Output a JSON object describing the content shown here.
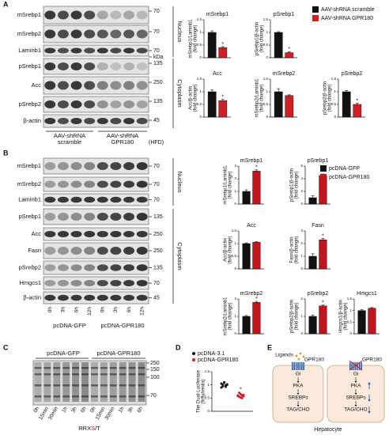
{
  "panel_labels": [
    "A",
    "B",
    "C",
    "D",
    "E"
  ],
  "legends": [
    [
      {
        "name": "AAV-shRNA scramble",
        "color": "#111111"
      },
      {
        "name": "AAV-shRNA GPR180",
        "color": "#d11f26"
      }
    ],
    [
      {
        "name": "pcDNA-GFP",
        "color": "#111111"
      },
      {
        "name": "pcDNA-GPR180",
        "color": "#c3151c"
      }
    ]
  ],
  "chart_data": [
    {
      "type": "bar",
      "title": "mSrebp1",
      "ylabel": [
        "mSrebp1/Laminb1",
        "(fold change)"
      ],
      "values": [
        1.0,
        0.4
      ],
      "errors": [
        0.06,
        0.04
      ],
      "ylim": [
        0,
        1.5
      ],
      "yticks": [
        0,
        0.5,
        1,
        1.5
      ],
      "annotation": "*"
    },
    {
      "type": "bar",
      "title": "pSrebp1",
      "ylabel": [
        "pSrebp1/β-actin",
        "(fold change)"
      ],
      "values": [
        1.0,
        0.2
      ],
      "errors": [
        0.03,
        0.04
      ],
      "ylim": [
        0,
        1.5
      ],
      "yticks": [
        0,
        0.5,
        1,
        1.5
      ],
      "annotation": "*"
    },
    {
      "type": "bar",
      "title": "Acc",
      "ylabel": [
        "Acc/β-actin",
        "(fold change)"
      ],
      "values": [
        1.0,
        0.65
      ],
      "errors": [
        0.07,
        0.05
      ],
      "ylim": [
        0,
        1.5
      ],
      "yticks": [
        0,
        0.5,
        1,
        1.5
      ],
      "annotation": "*"
    },
    {
      "type": "bar",
      "title": "mSrebp2",
      "ylabel": [
        "mSrebp2/Laminb1",
        "(fold change)"
      ],
      "values": [
        1.0,
        0.85
      ],
      "errors": [
        0.12,
        0.03
      ],
      "ylim": [
        0,
        1.5
      ],
      "yticks": [
        0,
        0.5,
        1,
        1.5
      ]
    },
    {
      "type": "bar",
      "title": "pSrebp2",
      "ylabel": [
        "pSrebp2/β-actin",
        "(fold change)"
      ],
      "values": [
        1.0,
        0.5
      ],
      "errors": [
        0.05,
        0.04
      ],
      "ylim": [
        0,
        1.5
      ],
      "yticks": [
        0,
        0.5,
        1,
        1.5
      ],
      "annotation": "*"
    },
    {
      "type": "bar",
      "title": "mSrebp1",
      "ylabel": [
        "mSrebp1/Laminb1",
        "(fold change)"
      ],
      "values": [
        1.0,
        2.6
      ],
      "errors": [
        0.12,
        0.1
      ],
      "ylim": [
        0,
        3
      ],
      "yticks": [
        0,
        1,
        2,
        3
      ],
      "annotation": "*"
    },
    {
      "type": "bar",
      "title": "pSrebp1",
      "ylabel": [
        "pSrebp1/β-actin",
        "(fold change)"
      ],
      "values": [
        1.0,
        4.5
      ],
      "errors": [
        0.3,
        0.25
      ],
      "ylim": [
        0,
        6
      ],
      "yticks": [
        0,
        2,
        4,
        6
      ],
      "annotation": "*"
    },
    {
      "type": "bar",
      "title": "Acc",
      "ylabel": [
        "Acc/β-actin",
        "(fold change)"
      ],
      "values": [
        1.0,
        1.05
      ],
      "errors": [
        0.03,
        0.03
      ],
      "ylim": [
        0,
        1.5
      ],
      "yticks": [
        0,
        0.5,
        1,
        1.5
      ]
    },
    {
      "type": "bar",
      "title": "Fasn",
      "ylabel": [
        "Fasn/β-actin",
        "(fold change)"
      ],
      "values": [
        1.0,
        2.3
      ],
      "errors": [
        0.2,
        0.1
      ],
      "ylim": [
        0,
        3
      ],
      "yticks": [
        0,
        1,
        2,
        3
      ],
      "annotation": "*"
    },
    {
      "type": "bar",
      "title": "mSrebp2",
      "ylabel": [
        "mSrebp2/Laminb1",
        "(fold change)"
      ],
      "values": [
        1.0,
        1.8
      ],
      "errors": [
        0.05,
        0.06
      ],
      "ylim": [
        0,
        2
      ],
      "yticks": [
        0,
        1,
        2
      ],
      "annotation": "*"
    },
    {
      "type": "bar",
      "title": "pSrebp2",
      "ylabel": [
        "pSrebp2/β-actin",
        "(fold change)"
      ],
      "values": [
        1.0,
        1.6
      ],
      "errors": [
        0.08,
        0.05
      ],
      "ylim": [
        0,
        2
      ],
      "yticks": [
        0,
        1,
        2
      ],
      "annotation": "*"
    },
    {
      "type": "bar",
      "title": "Hmgcs1",
      "ylabel": [
        "Hmgcs1/β-actin",
        "(fold change)"
      ],
      "values": [
        1.0,
        1.1
      ],
      "errors": [
        0.04,
        0.03
      ],
      "ylim": [
        0,
        1.5
      ],
      "yticks": [
        0,
        0.5,
        1,
        1.5
      ]
    },
    {
      "type": "dot",
      "ylabel": [
        "The Dual-Luciferase",
        "(firfly/renila)"
      ],
      "ylim": [
        0,
        1.5
      ],
      "yticks": [
        0,
        0.5,
        1,
        1.5
      ],
      "annotation": "*",
      "series": [
        {
          "name": "pcDNA-3.1",
          "color": "#111111",
          "values": [
            1.05,
            0.95,
            1.1,
            0.98,
            1.02,
            0.9,
            1.0,
            1.08,
            0.93,
            1.0
          ]
        },
        {
          "name": "pcDNA-GPR180",
          "color": "#d11f26",
          "values": [
            0.6,
            0.55,
            0.65,
            0.5,
            0.62,
            0.58,
            0.7,
            0.52,
            0.6,
            0.57
          ]
        }
      ]
    }
  ],
  "blot_a": {
    "rows": [
      "mSrebp1",
      "mSrebp2",
      "Laminb1",
      "pSrebp1",
      "Acc",
      "pSrebp2",
      "β-actin"
    ],
    "markers": [
      "70",
      "70",
      "70",
      "kDa",
      "135",
      "250",
      "135",
      "45"
    ],
    "sections": [
      "Nucleus",
      "Cytoplasm"
    ],
    "groups": [
      [
        "AAV-shRNA",
        "scramble"
      ],
      [
        "AAV-shRNA",
        "GPR180"
      ]
    ],
    "condition": "(HFD)"
  },
  "blot_b": {
    "rows": [
      "mSrebp1",
      "mSrebp2",
      "Laminb1",
      "pSrebp1",
      "Acc",
      "Fasn",
      "pSrebp2",
      "Hmgcs1",
      "β-actin"
    ],
    "markers": [
      "70",
      "70",
      "70",
      "135",
      "250",
      "250",
      "135",
      "70",
      "45"
    ],
    "sections": [
      "Nucleus",
      "Cytoplasm"
    ],
    "lanes": [
      "0h",
      "3h",
      "6h",
      "12h",
      "0h",
      "3h",
      "6h",
      "12h"
    ],
    "groups": [
      "pcDNA-GFP",
      "pcDNA-GPR180"
    ]
  },
  "blot_c": {
    "groups": [
      "pcDNA-GFP",
      "pcDNA-GPR180"
    ],
    "markers": [
      "250",
      "150",
      "100",
      "70"
    ],
    "lanes": [
      "0h",
      "15min",
      "30min",
      "1h",
      "3h",
      "6h",
      "0h",
      "15min",
      "30min",
      "1h",
      "3h",
      "6h"
    ],
    "xlabel": [
      "RRX",
      "S",
      "/T"
    ]
  },
  "diagram_e": {
    "cells": [
      {
        "ligand": "Ligands",
        "receptor": "GPR180",
        "gi": "Gi",
        "pka": "PKA",
        "srebp": "SREBPs",
        "product": "TAG/CHO"
      },
      {
        "receptor": "GPR180",
        "gi": "Gi",
        "pka": "PKA",
        "srebp": "SREBPs",
        "product": "TAG/CHO"
      }
    ],
    "caption": "Hepatocyte"
  }
}
